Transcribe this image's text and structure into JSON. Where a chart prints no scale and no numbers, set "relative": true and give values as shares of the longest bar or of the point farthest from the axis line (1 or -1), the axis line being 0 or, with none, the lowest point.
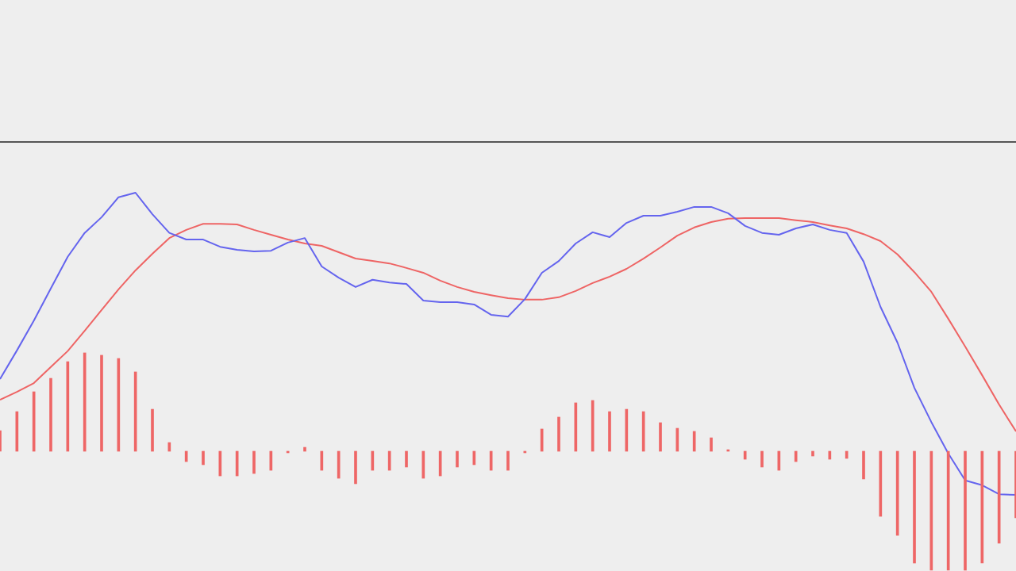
{
  "chart_data": [
    {
      "type": "line",
      "relative": true,
      "line_style": "solid",
      "categories": [
        null,
        null,
        null,
        null,
        null,
        null,
        null,
        null,
        null,
        null,
        null,
        null,
        null,
        null,
        null,
        null,
        null,
        null,
        null,
        null,
        null,
        null,
        null,
        null,
        null,
        null,
        null,
        null,
        null,
        null,
        null,
        null,
        null,
        null,
        null,
        null,
        null,
        null,
        null,
        null,
        null,
        null,
        null,
        null,
        null,
        null,
        null,
        null,
        null,
        null,
        null,
        null,
        null,
        null,
        null,
        null,
        null,
        null,
        null,
        null,
        null
      ],
      "series": [
        {
          "color": "#6464ee",
          "values": [
            0.383,
            0.478,
            0.577,
            0.683,
            0.788,
            0.867,
            0.919,
            0.985,
            1,
            0.929,
            0.867,
            0.845,
            0.845,
            0.821,
            0.811,
            0.806,
            0.808,
            0.835,
            0.85,
            0.756,
            0.719,
            0.688,
            0.712,
            0.703,
            0.698,
            0.643,
            0.638,
            0.638,
            0.63,
            0.596,
            0.59,
            0.648,
            0.735,
            0.774,
            0.832,
            0.869,
            0.853,
            0.9,
            0.924,
            0.924,
            0.937,
            0.953,
            0.953,
            0.932,
            0.89,
            0.867,
            0.861,
            0.882,
            0.895,
            0.877,
            0.867,
            0.772,
            0.622,
            0.504,
            0.354,
            0.241,
            0.137,
            0.048,
            0.032,
            0.002,
            0
          ]
        },
        {
          "color": "#ee6464",
          "values": [
            0.315,
            0.341,
            0.37,
            0.423,
            0.476,
            0.543,
            0.612,
            0.68,
            0.743,
            0.798,
            0.85,
            0.877,
            0.897,
            0.897,
            0.895,
            0.877,
            0.861,
            0.845,
            0.832,
            0.824,
            0.803,
            0.782,
            0.774,
            0.766,
            0.751,
            0.735,
            0.709,
            0.688,
            0.672,
            0.661,
            0.651,
            0.646,
            0.646,
            0.654,
            0.675,
            0.701,
            0.722,
            0.748,
            0.782,
            0.819,
            0.858,
            0.885,
            0.903,
            0.914,
            0.916,
            0.916,
            0.916,
            0.909,
            0.903,
            0.892,
            0.882,
            0.863,
            0.84,
            0.796,
            0.737,
            0.672,
            0.583,
            0.491,
            0.396,
            0.299,
            0.21
          ]
        }
      ]
    },
    {
      "type": "bar",
      "relative": true,
      "categories": [
        null,
        null,
        null,
        null,
        null,
        null,
        null,
        null,
        null,
        null,
        null,
        null,
        null,
        null,
        null,
        null,
        null,
        null,
        null,
        null,
        null,
        null,
        null,
        null,
        null,
        null,
        null,
        null,
        null,
        null,
        null,
        null,
        null,
        null,
        null,
        null,
        null,
        null,
        null,
        null,
        null,
        null,
        null,
        null,
        null,
        null,
        null,
        null,
        null,
        null,
        null,
        null,
        null,
        null,
        null,
        null,
        null,
        null,
        null,
        null,
        null
      ],
      "series": [
        {
          "color": "#ee6666",
          "values": [
            0.173,
            0.333,
            0.5,
            0.613,
            0.753,
            0.827,
            0.807,
            0.78,
            0.667,
            0.353,
            0.073,
            -0.087,
            -0.113,
            -0.207,
            -0.207,
            -0.187,
            -0.16,
            -0.013,
            0.033,
            -0.16,
            -0.227,
            -0.273,
            -0.16,
            -0.16,
            -0.133,
            -0.227,
            -0.207,
            -0.133,
            -0.113,
            -0.16,
            -0.16,
            -0.013,
            0.187,
            0.287,
            0.407,
            0.427,
            0.333,
            0.353,
            0.333,
            0.24,
            0.193,
            0.167,
            0.113,
            0.013,
            -0.067,
            -0.133,
            -0.16,
            -0.087,
            -0.04,
            -0.067,
            -0.06,
            -0.233,
            -0.547,
            -0.707,
            -0.94,
            -1,
            -1,
            -1,
            -0.94,
            -0.773,
            -0.56
          ]
        }
      ]
    }
  ]
}
